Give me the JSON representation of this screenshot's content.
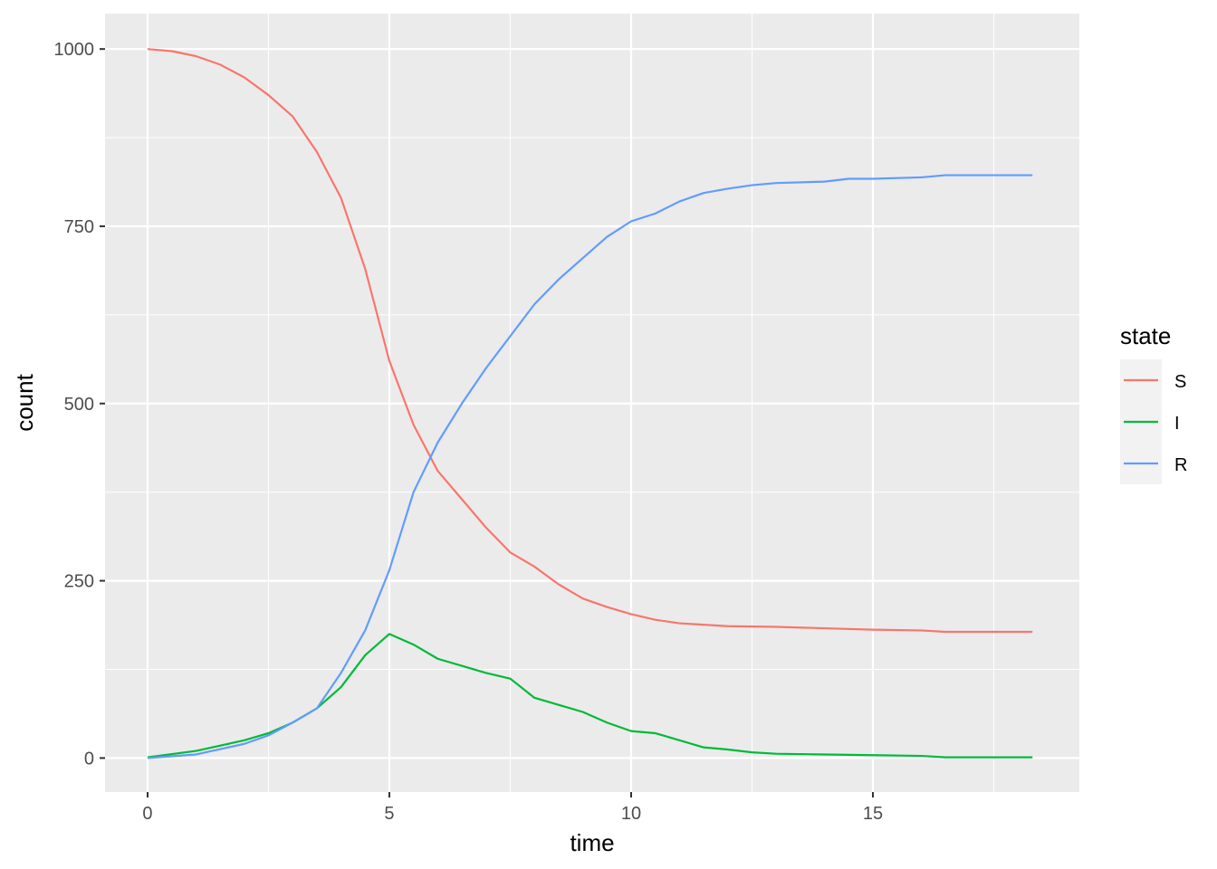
{
  "chart_data": {
    "type": "line",
    "title": "",
    "xlabel": "time",
    "ylabel": "count",
    "xlim": [
      -0.88,
      19.27
    ],
    "ylim": [
      -48,
      1050
    ],
    "xticks": [
      0,
      5,
      10,
      15
    ],
    "yticks": [
      0,
      250,
      500,
      750,
      1000
    ],
    "grid": true,
    "legend": {
      "title": "state",
      "placement": "right"
    },
    "series": [
      {
        "name": "S",
        "color": "#F8766D",
        "x": [
          0,
          0.5,
          1,
          1.5,
          2,
          2.5,
          3,
          3.5,
          4,
          4.5,
          5,
          5.5,
          6,
          6.5,
          7,
          7.5,
          8,
          8.5,
          9,
          9.5,
          10,
          10.5,
          11,
          12,
          13,
          14,
          15,
          16,
          16.5,
          18.3
        ],
        "y": [
          1000,
          997,
          990,
          978,
          960,
          935,
          905,
          855,
          790,
          690,
          560,
          470,
          405,
          365,
          325,
          290,
          270,
          245,
          225,
          213,
          203,
          195,
          190,
          186,
          185,
          183,
          181,
          180,
          178,
          178
        ]
      },
      {
        "name": "I",
        "color": "#00BA38",
        "x": [
          0,
          1,
          2,
          2.5,
          3,
          3.5,
          4,
          4.5,
          5,
          5.5,
          6,
          6.5,
          7,
          7.5,
          8,
          8.5,
          9,
          9.5,
          10,
          10.5,
          11,
          11.5,
          12,
          12.5,
          13,
          14,
          15,
          16,
          16.5,
          18.3
        ],
        "y": [
          1,
          10,
          25,
          35,
          50,
          70,
          100,
          145,
          175,
          160,
          140,
          130,
          120,
          112,
          85,
          75,
          65,
          50,
          38,
          35,
          25,
          15,
          12,
          8,
          6,
          5,
          4,
          3,
          1,
          1
        ]
      },
      {
        "name": "R",
        "color": "#619CFF",
        "x": [
          0,
          1,
          2,
          2.5,
          3,
          3.5,
          4,
          4.5,
          5,
          5.5,
          6,
          6.5,
          7,
          7.5,
          8,
          8.5,
          9,
          9.5,
          10,
          10.5,
          11,
          11.5,
          12,
          12.5,
          13,
          14,
          14.5,
          15,
          16,
          16.5,
          18.3
        ],
        "y": [
          0,
          5,
          20,
          32,
          50,
          70,
          120,
          180,
          265,
          375,
          445,
          500,
          550,
          595,
          640,
          675,
          705,
          735,
          757,
          768,
          785,
          797,
          803,
          808,
          811,
          813,
          817,
          817,
          819,
          822,
          822
        ]
      }
    ]
  }
}
